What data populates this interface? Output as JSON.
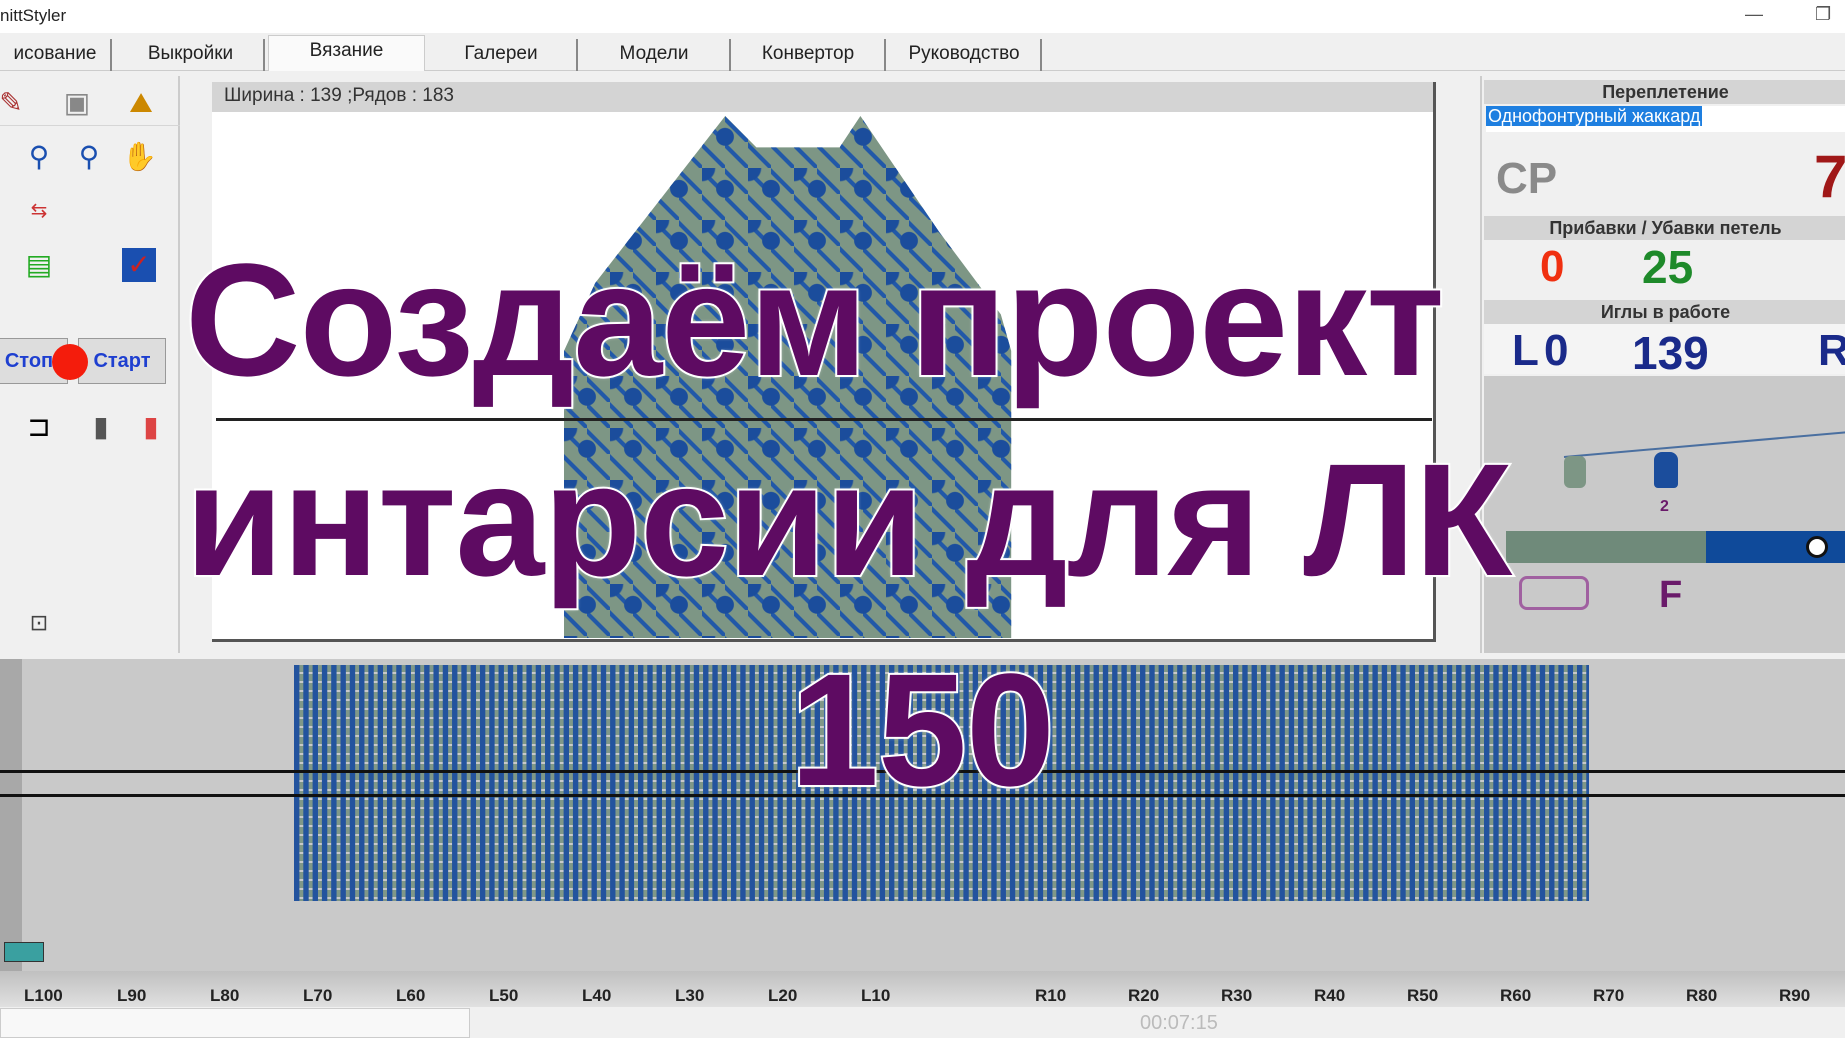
{
  "window": {
    "title": "nittStyler",
    "minimize": "—",
    "restore": "❐"
  },
  "tabs": [
    {
      "label": "исование"
    },
    {
      "label": "Выкройки"
    },
    {
      "label": "Вязание",
      "active": true
    },
    {
      "label": "Галереи"
    },
    {
      "label": "Модели"
    },
    {
      "label": "Конвертор"
    },
    {
      "label": "Руководство"
    }
  ],
  "toolbar": {
    "stop_label": "Стоп",
    "start_label": "Старт"
  },
  "canvas": {
    "info": "Ширина : 139 ;Рядов : 183"
  },
  "right_panel": {
    "weave_header": "Переплетение",
    "weave_value": "Однофонтурный жаккард",
    "cp_label": "CP",
    "cp_value": "7",
    "shaping_header": "Прибавки / Убавки петель",
    "shaping_left": "0",
    "shaping_center": "25",
    "needles_header": "Иглы в работе",
    "needles_left_label": "L",
    "needles_left": "0",
    "needles_count": "139",
    "needles_right_label": "R",
    "yarn_number": "2",
    "carriage_label": "F"
  },
  "ruler": {
    "labels": [
      "L100",
      "L90",
      "L80",
      "L70",
      "L60",
      "L50",
      "L40",
      "L30",
      "L20",
      "L10",
      "R10",
      "R20",
      "R30",
      "R40",
      "R50",
      "R60",
      "R70",
      "R80",
      "R90"
    ]
  },
  "player": {
    "time": "00:07:15"
  },
  "overlay": {
    "line1": "Создаём проект",
    "line2": "интарсии для ЛК",
    "line3": "150"
  },
  "colors": {
    "overlay_text": "#5e0b62",
    "yarn_blue": "#1b4d9c",
    "yarn_green": "#7d9685",
    "accent_red": "#f41c0c"
  }
}
